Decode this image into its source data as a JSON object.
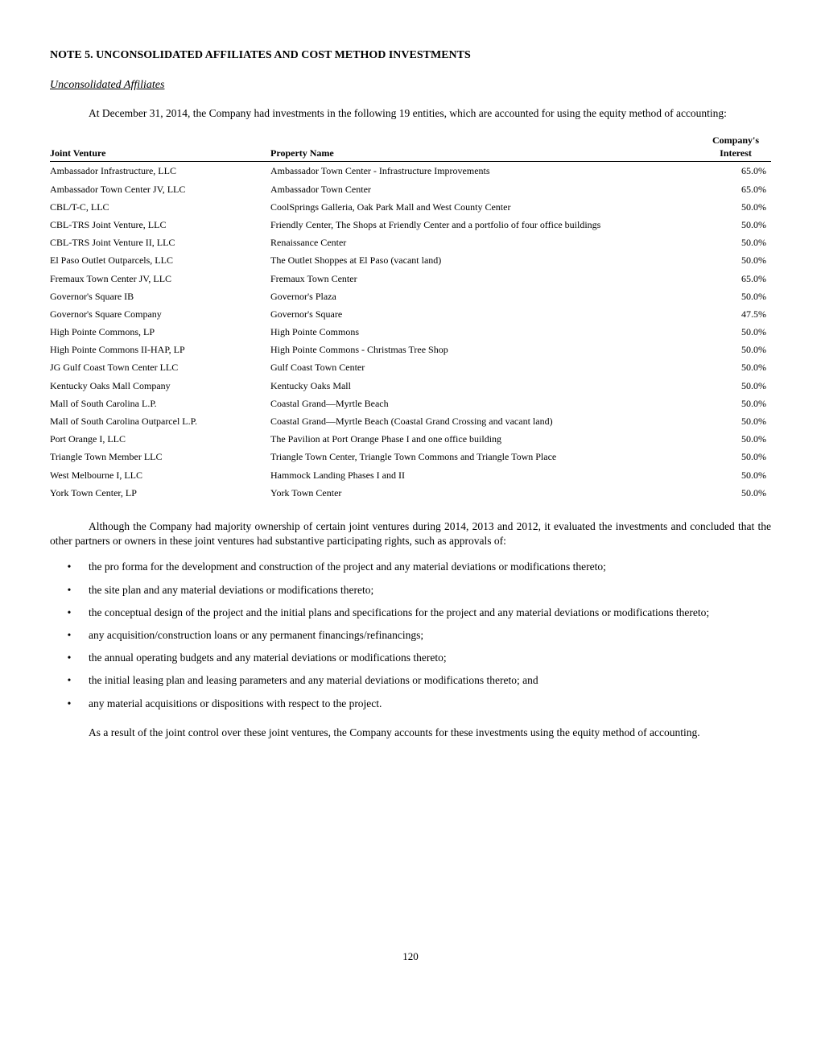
{
  "note_title": "NOTE 5. UNCONSOLIDATED AFFILIATES AND COST METHOD INVESTMENTS",
  "section_heading": "Unconsolidated Affiliates",
  "intro_para": "At December 31, 2014, the Company had investments in the following 19 entities, which are accounted for using the equity method of accounting:",
  "table": {
    "headers": {
      "jv": "Joint Venture",
      "prop": "Property Name",
      "interest_l1": "Company's",
      "interest_l2": "Interest"
    },
    "rows": [
      {
        "jv": "Ambassador Infrastructure, LLC",
        "prop": "Ambassador Town Center - Infrastructure Improvements",
        "interest": "65.0%"
      },
      {
        "jv": "Ambassador Town Center JV, LLC",
        "prop": "Ambassador Town Center",
        "interest": "65.0%"
      },
      {
        "jv": "CBL/T-C, LLC",
        "prop": "CoolSprings Galleria, Oak Park Mall and West County Center",
        "interest": "50.0%"
      },
      {
        "jv": "CBL-TRS Joint Venture, LLC",
        "prop": "Friendly Center, The Shops at Friendly Center and a portfolio of four office buildings",
        "interest": "50.0%"
      },
      {
        "jv": "CBL-TRS Joint Venture II, LLC",
        "prop": "Renaissance Center",
        "interest": "50.0%"
      },
      {
        "jv": "El Paso Outlet Outparcels, LLC",
        "prop": "The Outlet Shoppes at El Paso (vacant land)",
        "interest": "50.0%"
      },
      {
        "jv": "Fremaux Town Center JV, LLC",
        "prop": "Fremaux Town Center",
        "interest": "65.0%"
      },
      {
        "jv": "Governor's Square IB",
        "prop": "Governor's Plaza",
        "interest": "50.0%"
      },
      {
        "jv": "Governor's Square Company",
        "prop": "Governor's Square",
        "interest": "47.5%"
      },
      {
        "jv": "High Pointe Commons, LP",
        "prop": "High Pointe Commons",
        "interest": "50.0%"
      },
      {
        "jv": "High Pointe Commons II-HAP, LP",
        "prop": "High Pointe Commons - Christmas Tree Shop",
        "interest": "50.0%"
      },
      {
        "jv": "JG Gulf Coast Town Center LLC",
        "prop": "Gulf Coast Town Center",
        "interest": "50.0%"
      },
      {
        "jv": "Kentucky Oaks Mall Company",
        "prop": "Kentucky Oaks Mall",
        "interest": "50.0%"
      },
      {
        "jv": "Mall of South Carolina L.P.",
        "prop": "Coastal Grand—Myrtle Beach",
        "interest": "50.0%"
      },
      {
        "jv": "Mall of South Carolina Outparcel L.P.",
        "prop": "Coastal Grand—Myrtle Beach (Coastal Grand Crossing  and vacant land)",
        "interest": "50.0%"
      },
      {
        "jv": "Port Orange I, LLC",
        "prop": "The Pavilion at Port Orange Phase I and one office building",
        "interest": "50.0%"
      },
      {
        "jv": "Triangle Town Member LLC",
        "prop": "Triangle Town Center, Triangle Town Commons  and Triangle Town Place",
        "interest": "50.0%"
      },
      {
        "jv": "West Melbourne I, LLC",
        "prop": "Hammock Landing Phases I and II",
        "interest": "50.0%"
      },
      {
        "jv": "York Town Center, LP",
        "prop": "York Town Center",
        "interest": "50.0%"
      }
    ]
  },
  "para_after_table": "Although the Company had majority ownership of certain joint ventures during 2014, 2013 and 2012, it evaluated the investments and concluded that the other partners or owners in these joint ventures had substantive participating rights, such as approvals of:",
  "bullets": [
    "the pro forma for the development and construction of the project and any material deviations or modifications thereto;",
    "the site plan and any material deviations or modifications thereto;",
    "the conceptual design of the project and the initial plans and specifications for the project and any material deviations or modifications thereto;",
    "any acquisition/construction loans or any permanent financings/refinancings;",
    "the annual operating budgets and any material deviations or modifications thereto;",
    "the initial leasing plan and leasing parameters and any material deviations or modifications thereto; and",
    "any material acquisitions or dispositions with respect to the project."
  ],
  "closing_para": "As a result of the joint control over these joint ventures, the Company accounts for these investments using the equity method of accounting.",
  "page_number": "120"
}
